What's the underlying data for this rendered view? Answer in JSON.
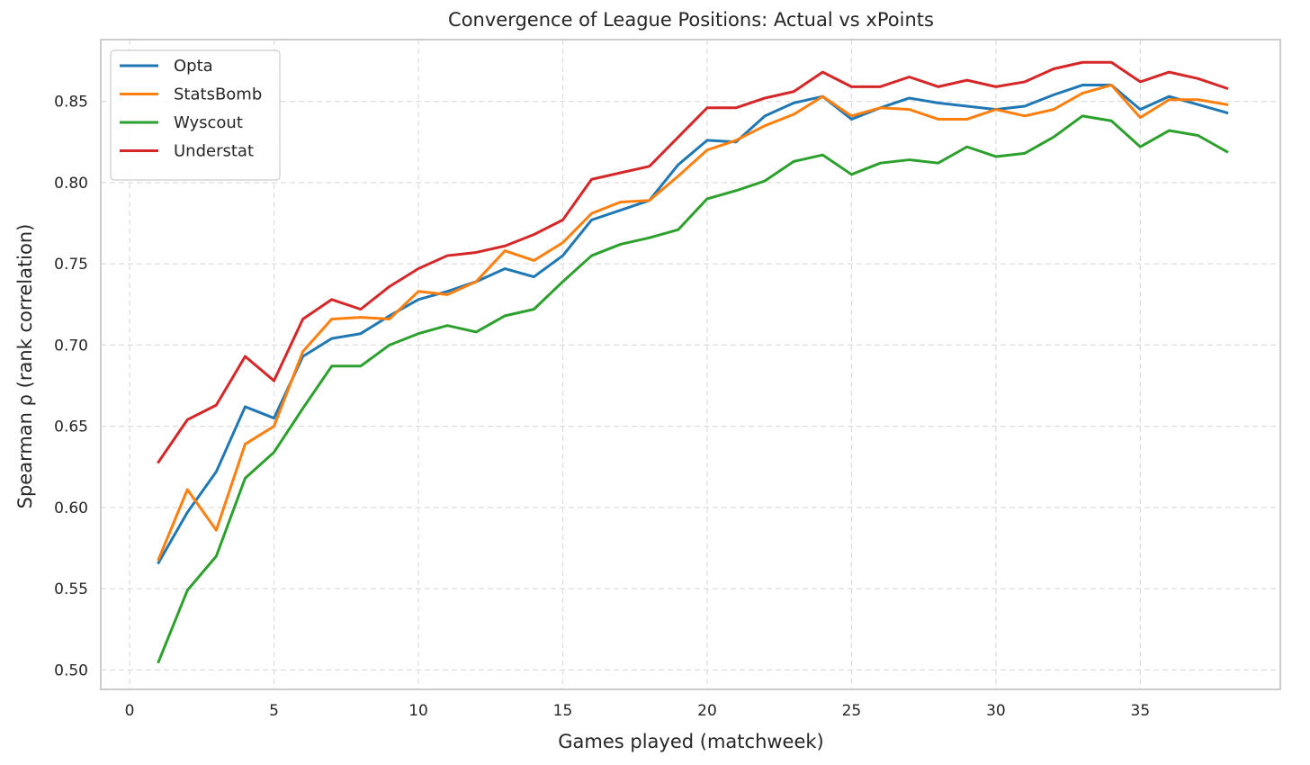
{
  "chart_data": {
    "type": "line",
    "title": "Convergence of League Positions: Actual vs xPoints",
    "xlabel": "Games played (matchweek)",
    "ylabel": "Spearman ρ (rank correlation)",
    "xlim": [
      -1,
      39.85
    ],
    "ylim": [
      0.488,
      0.888
    ],
    "xticks": [
      0,
      5,
      10,
      15,
      20,
      25,
      30,
      35
    ],
    "xtick_labels": [
      "0",
      "5",
      "10",
      "15",
      "20",
      "25",
      "30",
      "35"
    ],
    "yticks": [
      0.5,
      0.55,
      0.6,
      0.65,
      0.7,
      0.75,
      0.8,
      0.85
    ],
    "ytick_labels": [
      "0.50",
      "0.55",
      "0.60",
      "0.65",
      "0.70",
      "0.75",
      "0.80",
      "0.85"
    ],
    "grid": true,
    "legend_position": "top-left",
    "x": [
      1,
      2,
      3,
      4,
      5,
      6,
      7,
      8,
      9,
      10,
      11,
      12,
      13,
      14,
      15,
      16,
      17,
      18,
      19,
      20,
      21,
      22,
      23,
      24,
      25,
      26,
      27,
      28,
      29,
      30,
      31,
      32,
      33,
      34,
      35,
      36,
      37,
      38
    ],
    "series": [
      {
        "name": "Opta",
        "color": "#1f77b4",
        "values": [
          0.566,
          0.597,
          0.622,
          0.662,
          0.655,
          0.693,
          0.704,
          0.707,
          0.718,
          0.728,
          0.733,
          0.739,
          0.747,
          0.742,
          0.755,
          0.777,
          0.783,
          0.789,
          0.811,
          0.826,
          0.825,
          0.841,
          0.849,
          0.853,
          0.839,
          0.846,
          0.852,
          0.849,
          0.847,
          0.845,
          0.847,
          0.854,
          0.86,
          0.86,
          0.845,
          0.853,
          0.848,
          0.843
        ]
      },
      {
        "name": "StatsBomb",
        "color": "#ff7f0e",
        "values": [
          0.568,
          0.611,
          0.586,
          0.639,
          0.65,
          0.696,
          0.716,
          0.717,
          0.716,
          0.733,
          0.731,
          0.739,
          0.758,
          0.752,
          0.763,
          0.781,
          0.788,
          0.789,
          0.804,
          0.82,
          0.826,
          0.835,
          0.842,
          0.853,
          0.841,
          0.846,
          0.845,
          0.839,
          0.839,
          0.845,
          0.841,
          0.845,
          0.855,
          0.86,
          0.84,
          0.851,
          0.851,
          0.848
        ]
      },
      {
        "name": "Wyscout",
        "color": "#2ca02c",
        "values": [
          0.505,
          0.549,
          0.57,
          0.618,
          0.634,
          0.661,
          0.687,
          0.687,
          0.7,
          0.707,
          0.712,
          0.708,
          0.718,
          0.722,
          0.739,
          0.755,
          0.762,
          0.766,
          0.771,
          0.79,
          0.795,
          0.801,
          0.813,
          0.817,
          0.805,
          0.812,
          0.814,
          0.812,
          0.822,
          0.816,
          0.818,
          0.828,
          0.841,
          0.838,
          0.822,
          0.832,
          0.829,
          0.819
        ]
      },
      {
        "name": "Understat",
        "color": "#d62728",
        "values": [
          0.628,
          0.654,
          0.663,
          0.693,
          0.678,
          0.716,
          0.728,
          0.722,
          0.736,
          0.747,
          0.755,
          0.757,
          0.761,
          0.768,
          0.777,
          0.802,
          0.806,
          0.81,
          0.828,
          0.846,
          0.846,
          0.852,
          0.856,
          0.868,
          0.859,
          0.859,
          0.865,
          0.859,
          0.863,
          0.859,
          0.862,
          0.87,
          0.874,
          0.874,
          0.862,
          0.868,
          0.864,
          0.858
        ]
      }
    ]
  }
}
